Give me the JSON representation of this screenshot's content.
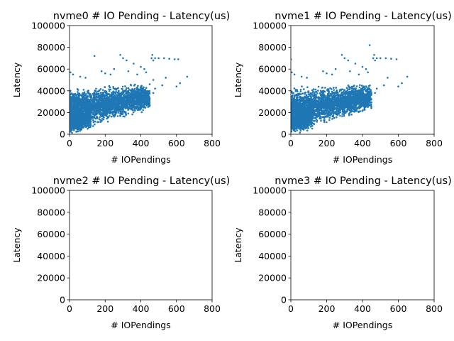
{
  "chart_data": [
    {
      "type": "scatter",
      "title": "nvme0 # IO Pending - Latency(us)",
      "xlabel": "# IOPendings",
      "ylabel": "Latency",
      "xlim": [
        0,
        800
      ],
      "ylim": [
        0,
        100000
      ],
      "xticks": [
        "0",
        "200",
        "400",
        "600",
        "800"
      ],
      "yticks": [
        "0",
        "20000",
        "40000",
        "60000",
        "80000",
        "100000"
      ],
      "series": [
        {
          "color": "#1f77b4",
          "clusters": [
            {
              "x": [
                0,
                450
              ],
              "y_low": [
                0,
                20000
              ],
              "y_high": [
                45000,
                48000
              ],
              "n": 2600
            },
            {
              "x": [
                0,
                120
              ],
              "y_low": [
                0,
                2000
              ],
              "y_high": [
                20000,
                30000
              ],
              "n": 700
            }
          ],
          "points": [
            [
              140,
              72000
            ],
            [
              285,
              73000
            ],
            [
              300,
              70000
            ],
            [
              320,
              68000
            ],
            [
              360,
              65000
            ],
            [
              400,
              62000
            ],
            [
              420,
              60000
            ],
            [
              460,
              70000
            ],
            [
              465,
              73000
            ],
            [
              470,
              68000
            ],
            [
              470,
              50000
            ],
            [
              480,
              70000
            ],
            [
              500,
              70000
            ],
            [
              530,
              70000
            ],
            [
              560,
              69500
            ],
            [
              590,
              69000
            ],
            [
              610,
              69000
            ],
            [
              660,
              53000
            ],
            [
              5,
              57000
            ],
            [
              20,
              55000
            ],
            [
              60,
              53000
            ],
            [
              90,
              52000
            ],
            [
              180,
              58000
            ],
            [
              200,
              56000
            ],
            [
              230,
              55000
            ],
            [
              250,
              60000
            ],
            [
              330,
              58000
            ],
            [
              380,
              55000
            ],
            [
              430,
              57000
            ],
            [
              520,
              45000
            ],
            [
              600,
              44000
            ],
            [
              620,
              47000
            ],
            [
              540,
              52000
            ],
            [
              480,
              42000
            ],
            [
              470,
              38000
            ]
          ]
        }
      ]
    },
    {
      "type": "scatter",
      "title": "nvme1 # IO Pending - Latency(us)",
      "xlabel": "# IOPendings",
      "ylabel": "Latency",
      "xlim": [
        0,
        800
      ],
      "ylim": [
        0,
        100000
      ],
      "xticks": [
        "0",
        "200",
        "400",
        "600",
        "800"
      ],
      "yticks": [
        "0",
        "20000",
        "40000",
        "60000",
        "80000",
        "100000"
      ],
      "series": [
        {
          "color": "#1f77b4",
          "clusters": [
            {
              "x": [
                0,
                450
              ],
              "y_low": [
                0,
                20000
              ],
              "y_high": [
                45000,
                48000
              ],
              "n": 2600
            },
            {
              "x": [
                0,
                120
              ],
              "y_low": [
                0,
                2000
              ],
              "y_high": [
                20000,
                30000
              ],
              "n": 700
            }
          ],
          "points": [
            [
              0,
              69000
            ],
            [
              440,
              82000
            ],
            [
              285,
              73000
            ],
            [
              300,
              70000
            ],
            [
              320,
              68000
            ],
            [
              360,
              65000
            ],
            [
              400,
              62000
            ],
            [
              420,
              60000
            ],
            [
              460,
              70000
            ],
            [
              465,
              73000
            ],
            [
              470,
              68000
            ],
            [
              480,
              70000
            ],
            [
              500,
              70000
            ],
            [
              530,
              70000
            ],
            [
              560,
              69500
            ],
            [
              590,
              69000
            ],
            [
              650,
              53000
            ],
            [
              5,
              57000
            ],
            [
              20,
              55000
            ],
            [
              60,
              53000
            ],
            [
              90,
              52000
            ],
            [
              180,
              58000
            ],
            [
              200,
              56000
            ],
            [
              230,
              55000
            ],
            [
              250,
              60000
            ],
            [
              330,
              58000
            ],
            [
              380,
              55000
            ],
            [
              430,
              57000
            ],
            [
              520,
              45000
            ],
            [
              600,
              44000
            ],
            [
              620,
              47000
            ],
            [
              540,
              52000
            ],
            [
              480,
              42000
            ],
            [
              470,
              38000
            ]
          ]
        }
      ]
    },
    {
      "type": "scatter",
      "title": "nvme2 # IO Pending - Latency(us)",
      "xlabel": "# IOPendings",
      "ylabel": "Latency",
      "xlim": [
        0,
        800
      ],
      "ylim": [
        0,
        100000
      ],
      "xticks": [
        "0",
        "200",
        "400",
        "600",
        "800"
      ],
      "yticks": [
        "0",
        "20000",
        "40000",
        "60000",
        "80000",
        "100000"
      ],
      "series": []
    },
    {
      "type": "scatter",
      "title": "nvme3 # IO Pending - Latency(us)",
      "xlabel": "# IOPendings",
      "ylabel": "Latency",
      "xlim": [
        0,
        800
      ],
      "ylim": [
        0,
        100000
      ],
      "xticks": [
        "0",
        "200",
        "400",
        "600",
        "800"
      ],
      "yticks": [
        "0",
        "20000",
        "40000",
        "60000",
        "80000",
        "100000"
      ],
      "series": []
    }
  ]
}
